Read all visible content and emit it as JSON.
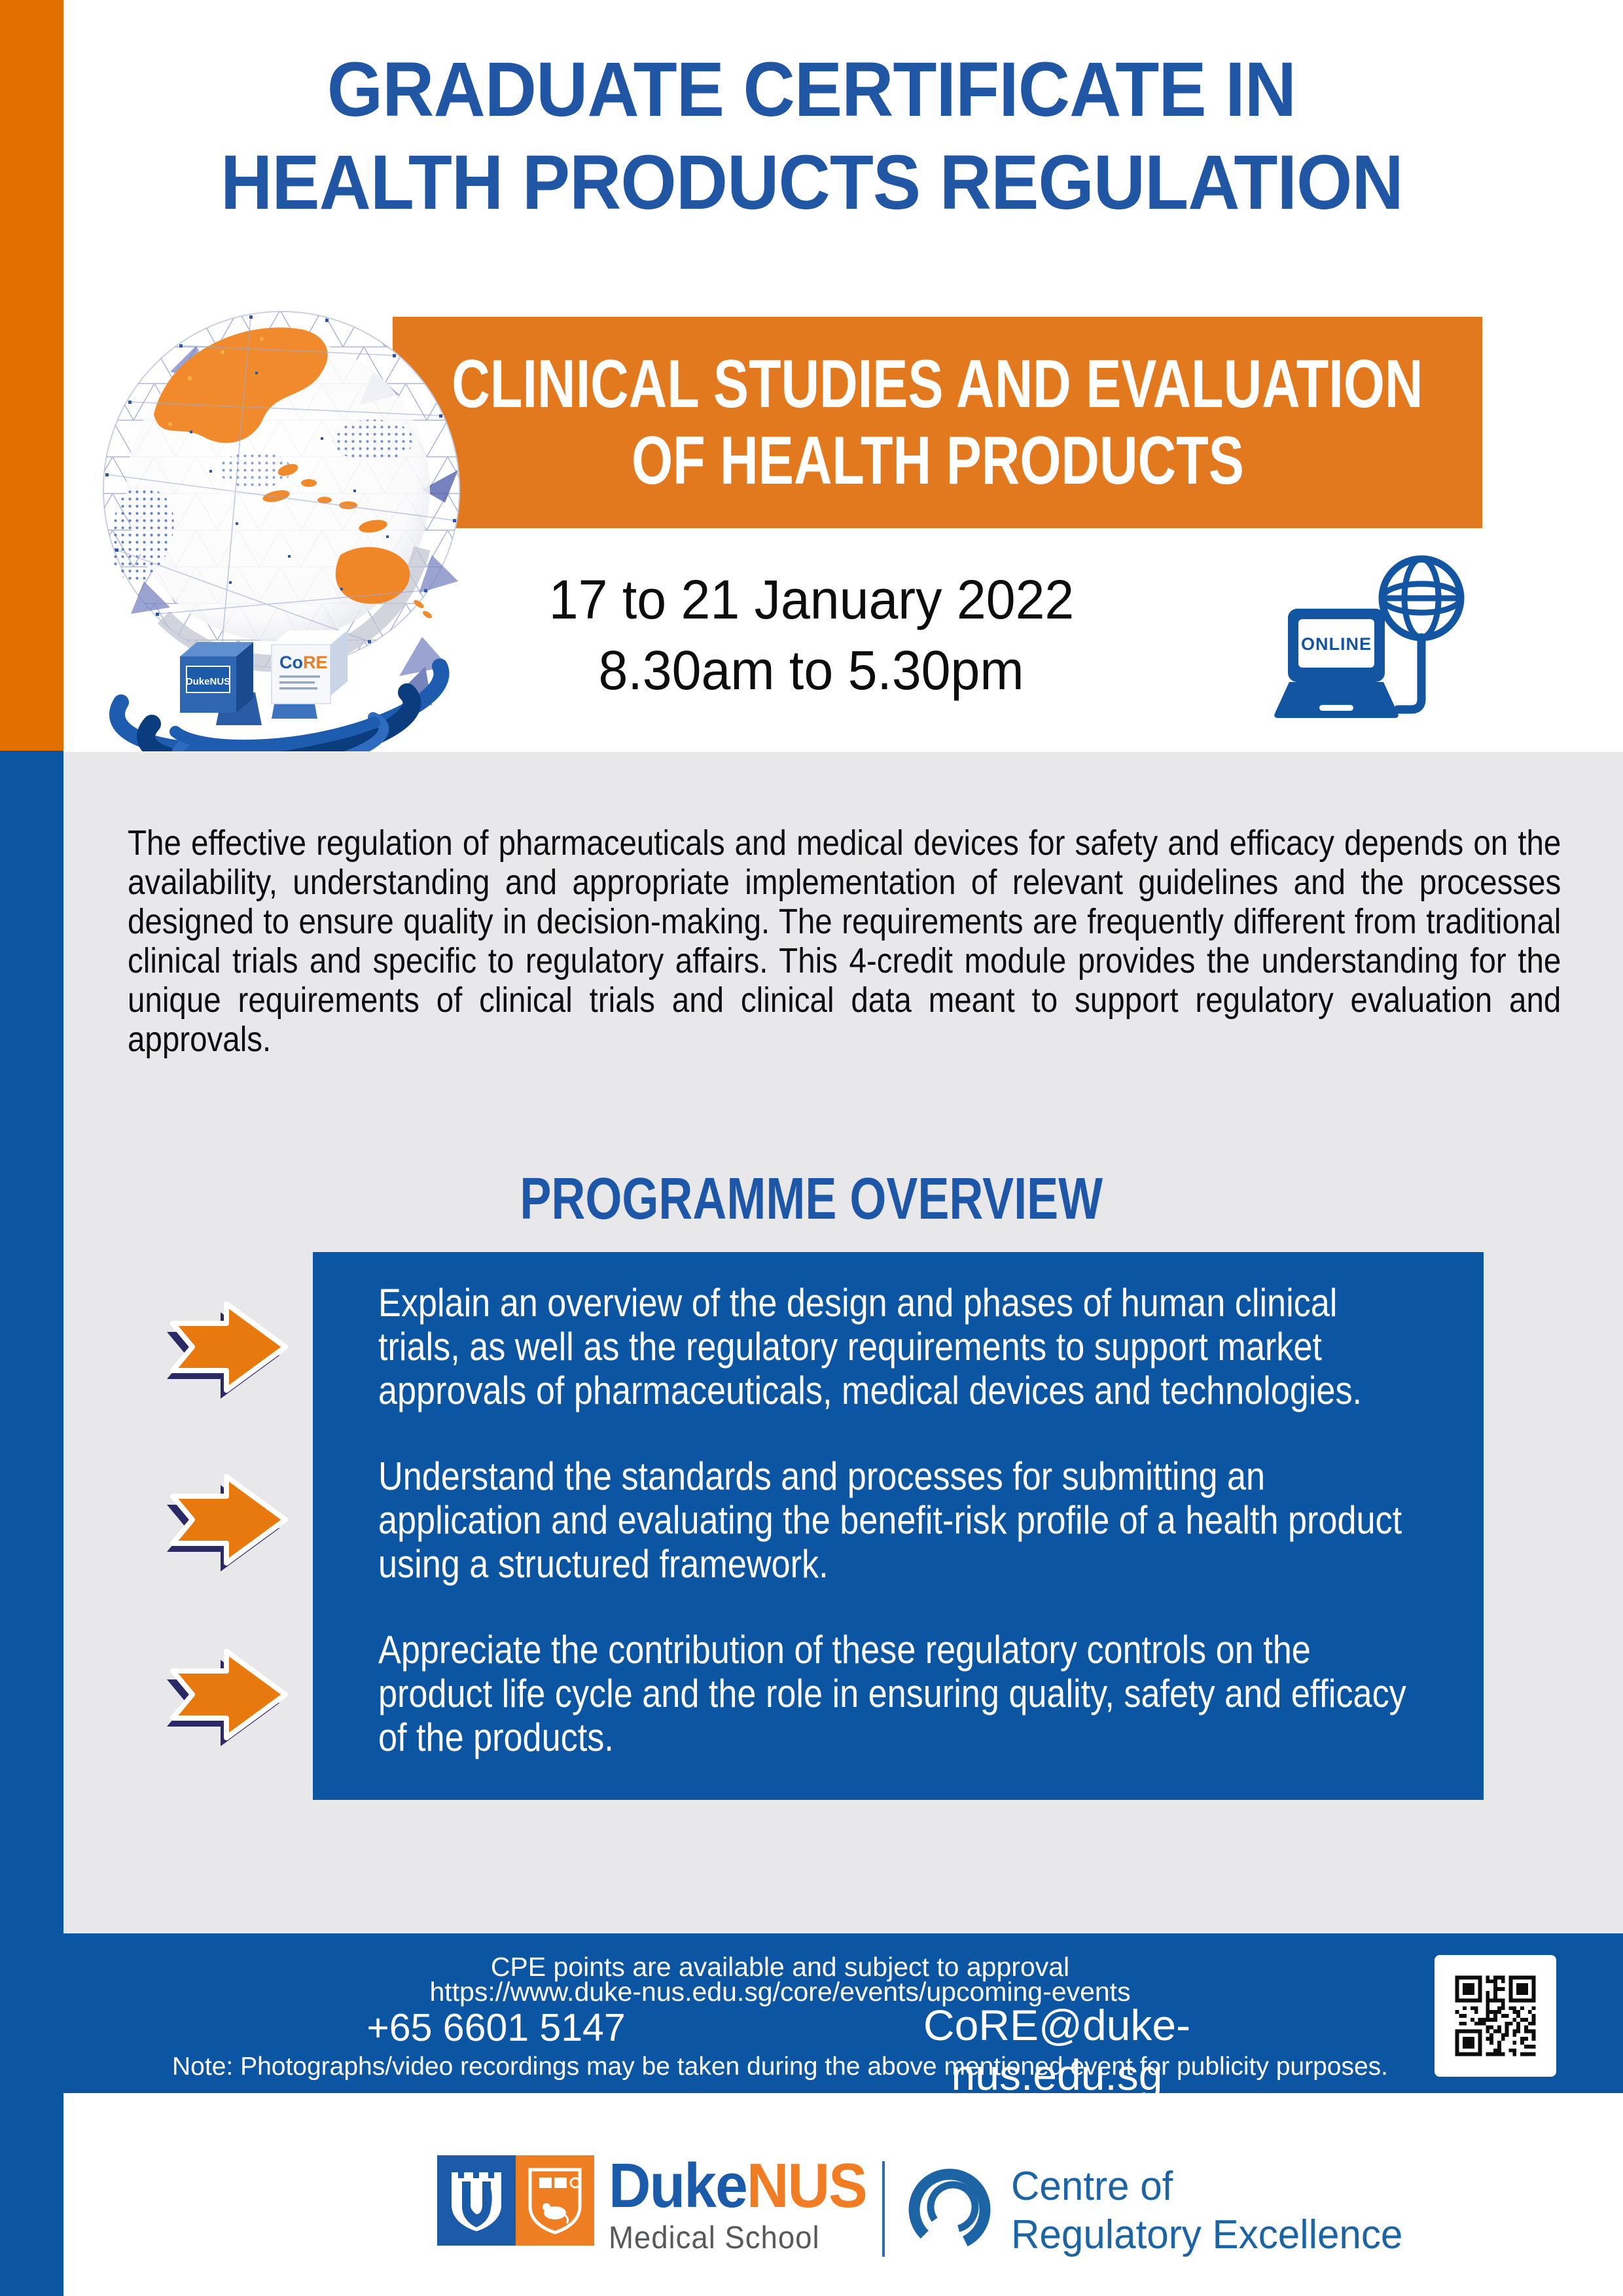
{
  "colors": {
    "left_bar_orange": "#E17000",
    "banner_orange": "#E2791E",
    "title_blue": "#2156A5",
    "panel_blue": "#0B55A2",
    "gray_background": "#E8E8EA",
    "arrow_orange": "#E8790F",
    "arrow_shadow_navy": "#2B2A66",
    "duke_blue": "#1C5BA9",
    "nus_orange": "#F07D23",
    "school_gray": "#58595B",
    "core_blue": "#1D64A5"
  },
  "header": {
    "title_line1": "GRADUATE CERTIFICATE IN",
    "title_line2": "HEALTH PRODUCTS REGULATION"
  },
  "banner": {
    "line1": "CLINICAL STUDIES AND EVALUATION",
    "line2": "OF HEALTH PRODUCTS"
  },
  "schedule": {
    "dates": "17 to 21 January 2022",
    "time": "8.30am to 5.30pm"
  },
  "online_icon": {
    "label": "ONLINE"
  },
  "intro": {
    "text": "The effective regulation of pharmaceuticals and medical devices for safety and efficacy depends on the availability, understanding and appropriate implementation of relevant guidelines and the processes designed to ensure quality in decision-making. The requirements are frequently different from traditional clinical trials and specific to regulatory affairs. This 4-credit module provides the understanding for the unique requirements of clinical trials and clinical data meant to support regulatory evaluation and approvals."
  },
  "overview": {
    "heading": "PROGRAMME OVERVIEW",
    "bullets": [
      "Explain an overview of the design and phases of human clinical trials, as well as the regulatory requirements to support market approvals of pharmaceuticals, medical devices and technologies.",
      "Understand the standards and processes for submitting an application and evaluating the benefit-risk profile of a health product using a structured framework.",
      "Appreciate the contribution of these regulatory controls on the product life cycle and the role in ensuring quality, safety and efficacy of the products."
    ]
  },
  "footer": {
    "cpe": "CPE points are available and subject to approval",
    "url": "https://www.duke-nus.edu.sg/core/events/upcoming-events",
    "phone": "+65 6601 5147",
    "email": "CoRE@duke-nus.edu.sg",
    "note": "Note: Photographs/video recordings may be taken during the above mentioned event for publicity purposes."
  },
  "logos": {
    "duke": "Duke",
    "nus": "NUS",
    "school": "Medical School",
    "core_line1": "Centre of",
    "core_line2": "Regulatory Excellence",
    "globe_cube1": "DukeNUS",
    "globe_cube2_co": "Co",
    "globe_cube2_re": "RE"
  }
}
